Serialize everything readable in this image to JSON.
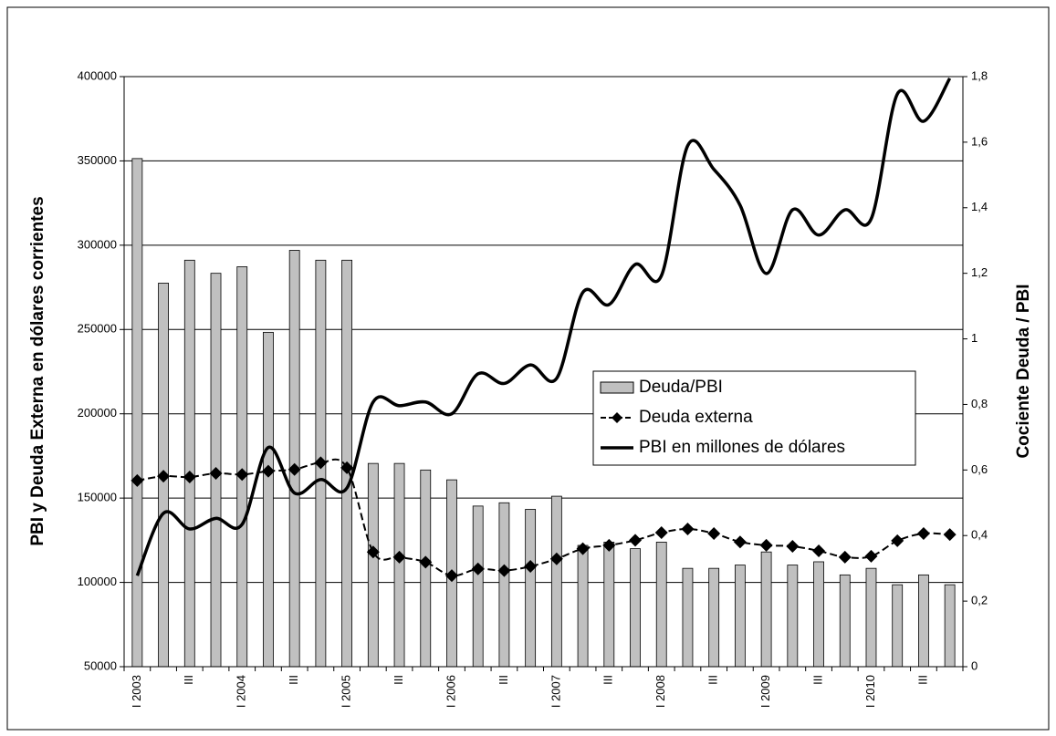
{
  "chart_data": {
    "type": "bar",
    "y_label": "PBI y Deuda Externa en dólares corrientes",
    "y2_label": "Cociente Deuda / PBI",
    "categories": [
      "I 2003",
      null,
      "III",
      null,
      "I 2004",
      null,
      "III",
      null,
      "I 2005",
      null,
      "III",
      null,
      "I 2006",
      null,
      "III",
      null,
      "I 2007",
      null,
      "III",
      null,
      "I 2008",
      null,
      "III",
      null,
      "I 2009",
      null,
      "III",
      null,
      "I 2010",
      null,
      "III",
      null
    ],
    "series": [
      {
        "name": "Deuda/PBI",
        "type": "bar",
        "axis": "y2",
        "color": "#c0c0c0",
        "values": [
          1.55,
          1.17,
          1.24,
          1.2,
          1.22,
          1.02,
          1.27,
          1.24,
          1.24,
          0.62,
          0.62,
          0.6,
          0.57,
          0.49,
          0.5,
          0.48,
          0.52,
          0.37,
          0.38,
          0.36,
          0.38,
          0.3,
          0.3,
          0.31,
          0.35,
          0.31,
          0.32,
          0.28,
          0.3,
          0.25,
          0.28,
          0.25
        ]
      },
      {
        "name": "Deuda externa",
        "type": "line",
        "color": "#000000",
        "dashed": true,
        "marker": "diamond",
        "values": [
          160400,
          163000,
          162500,
          164700,
          164000,
          166000,
          167000,
          171000,
          168000,
          118000,
          115000,
          112000,
          104000,
          108000,
          107000,
          109500,
          114000,
          120000,
          122000,
          125000,
          129500,
          131700,
          129000,
          124000,
          122000,
          121400,
          118700,
          115000,
          115500,
          124700,
          129000,
          128400
        ]
      },
      {
        "name": "PBI en millones de dólares",
        "type": "line",
        "color": "#000000",
        "values": [
          104000,
          141000,
          131700,
          138000,
          134400,
          180000,
          153000,
          161000,
          156000,
          207000,
          204800,
          207000,
          200000,
          223700,
          218000,
          229000,
          221000,
          272000,
          264800,
          288600,
          282000,
          359000,
          345000,
          323700,
          283200,
          321000,
          306000,
          321000,
          315600,
          389700,
          373500,
          399000
        ]
      }
    ],
    "ylim": [
      50000,
      400000
    ],
    "yticks": [
      50000,
      100000,
      150000,
      200000,
      250000,
      300000,
      350000,
      400000
    ],
    "y2lim": [
      0,
      1.8
    ],
    "y2ticks": [
      0,
      {
        "value": 0.2,
        "label": "0,2"
      },
      {
        "value": 0.4,
        "label": "0,4"
      },
      {
        "value": 0.6,
        "label": "0,6"
      },
      {
        "value": 0.8,
        "label": "0,8"
      },
      1,
      {
        "value": 1.2,
        "label": "1,2"
      },
      {
        "value": 1.4,
        "label": "1,4"
      },
      {
        "value": 1.6,
        "label": "1,6"
      },
      {
        "value": 1.8,
        "label": "1,8"
      }
    ],
    "grid": true
  }
}
